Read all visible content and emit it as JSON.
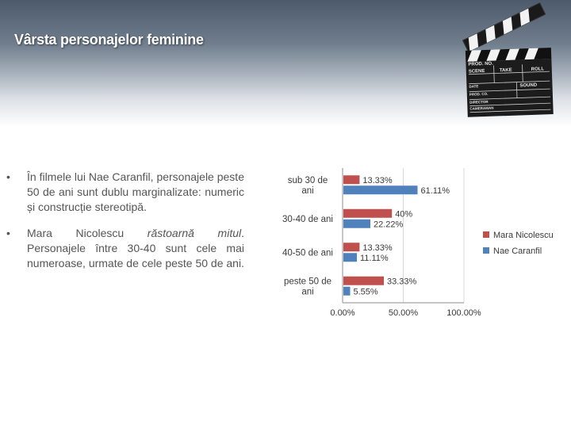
{
  "title": "Vârsta personajelor feminine",
  "clapperboard": {
    "labels": [
      "PROD. NO.",
      "SCENE",
      "TAKE",
      "ROLL",
      "DATE",
      "SOUND",
      "PROD. CO.",
      "DIRECTOR",
      "CAMERAMAN"
    ]
  },
  "bullets": [
    {
      "text": "În filmele lui Nae Caranfil, personajele peste 50 de ani sunt dublu marginalizate: numeric și construcție stereotipă."
    },
    {
      "prefix": "Mara Nicolescu ",
      "emphasis": "răstoarnă mitul",
      "suffix": ". Personajele între 30-40 sunt cele mai numeroase, urmate de cele peste 50 de ani."
    }
  ],
  "chart_data": {
    "type": "bar",
    "orientation": "horizontal",
    "categories": [
      "sub 30 de ani",
      "30-40 de ani",
      "40-50 de ani",
      "peste 50 de ani"
    ],
    "series": [
      {
        "name": "Mara Nicolescu",
        "values": [
          13.33,
          40,
          13.33,
          33.33
        ],
        "labels": [
          "13.33%",
          "40%",
          "13.33%",
          "33.33%"
        ],
        "color": "#c0504d"
      },
      {
        "name": "Nae Caranfil",
        "values": [
          61.11,
          22.22,
          11.11,
          5.55
        ],
        "labels": [
          "61.11%",
          "22.22%",
          "11.11%",
          "5.55%"
        ],
        "color": "#4f81bd"
      }
    ],
    "xlim": [
      0,
      100
    ],
    "xticks": [
      "0.00%",
      "50.00%",
      "100.00%"
    ],
    "grid": "vertical",
    "legend": "right"
  }
}
